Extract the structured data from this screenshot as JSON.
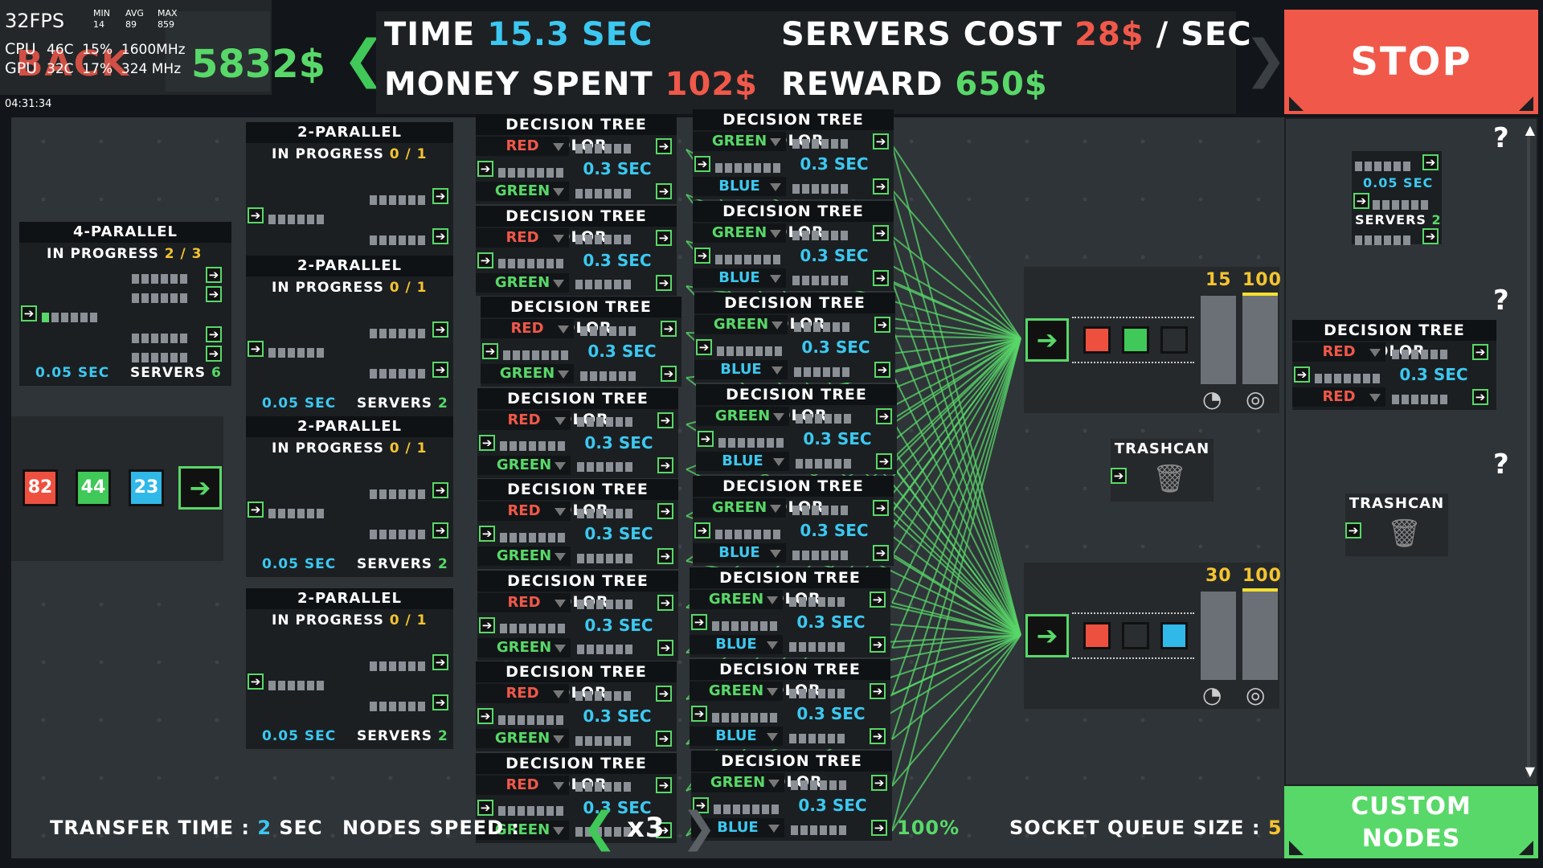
{
  "perf": {
    "fps": "32FPS",
    "min_label": "MIN",
    "avg_label": "AVG",
    "max_label": "MAX",
    "min": "14",
    "avg": "89",
    "max": "859",
    "cpu_label": "CPU",
    "cpu": "46C  15%  1600MHz",
    "gpu_label": "GPU",
    "gpu": "32C  17%  324 MHz",
    "clock": "04:31:34"
  },
  "header": {
    "back_label": "BACK",
    "money": "5832$",
    "time_label": "TIME",
    "time_value": "15.3 SEC",
    "servers_cost_label": "SERVERS COST",
    "servers_cost_value": "28$",
    "servers_cost_unit": "/ SEC",
    "money_spent_label": "MONEY SPENT",
    "money_spent_value": "102$",
    "reward_label": "REWARD",
    "reward_value": "650$",
    "stop_label": "STOP"
  },
  "source": {
    "counts": [
      "82",
      "44",
      "23"
    ],
    "colors": [
      "#ee5040",
      "#40c858",
      "#30b8e8"
    ]
  },
  "parallel4": {
    "title": "4-PARALLEL",
    "progress_label": "IN PROGRESS",
    "progress": "2 / 3",
    "sec": "0.05 SEC",
    "servers_label": "SERVERS",
    "servers": "6"
  },
  "parallel2": [
    {
      "title": "2-PARALLEL",
      "progress_label": "IN PROGRESS",
      "progress": "0 / 1",
      "sec": "0.05 SEC",
      "servers_label": "SERVERS",
      "servers": "2"
    },
    {
      "title": "2-PARALLEL",
      "progress_label": "IN PROGRESS",
      "progress": "0 / 1",
      "sec": "0.05 SEC",
      "servers_label": "SERVERS",
      "servers": "2"
    },
    {
      "title": "2-PARALLEL",
      "progress_label": "IN PROGRESS",
      "progress": "0 / 1",
      "sec": "0.05 SEC",
      "servers_label": "SERVERS",
      "servers": "2"
    },
    {
      "title": "2-PARALLEL",
      "progress_label": "IN PROGRESS",
      "progress": "0 / 1",
      "sec": "0.05 SEC",
      "servers_label": "SERVERS",
      "servers": "2"
    }
  ],
  "decision_tree": {
    "title": "DECISION TREE COLOR",
    "sec": "0.3 SEC",
    "red": "RED",
    "green": "GREEN",
    "blue": "BLUE"
  },
  "sinks": [
    {
      "count": "15",
      "target": "100",
      "slots": [
        "#ee5040",
        "#40c858",
        "#2a2e31"
      ]
    },
    {
      "count": "30",
      "target": "100",
      "slots": [
        "#ee5040",
        "#2a2e31",
        "#30b8e8"
      ]
    }
  ],
  "trashcan_label": "TRASHCAN",
  "bottom": {
    "transfer_label": "TRANSFER TIME :",
    "transfer_value": "2",
    "transfer_unit": "SEC",
    "speed_label": "NODES SPEED :",
    "speed_value": "100%",
    "multiplier": "x3",
    "queue_label": "SOCKET QUEUE SIZE :",
    "queue_value": "5"
  },
  "panel": {
    "help": "?",
    "server_sec": "0.05 SEC",
    "servers_label": "SERVERS",
    "servers": "2",
    "dt_title": "DECISION TREE COLOR",
    "dt_red": "RED",
    "dt_sec": "0.3 SEC",
    "trash": "TRASHCAN",
    "custom_nodes": "CUSTOM NODES"
  }
}
